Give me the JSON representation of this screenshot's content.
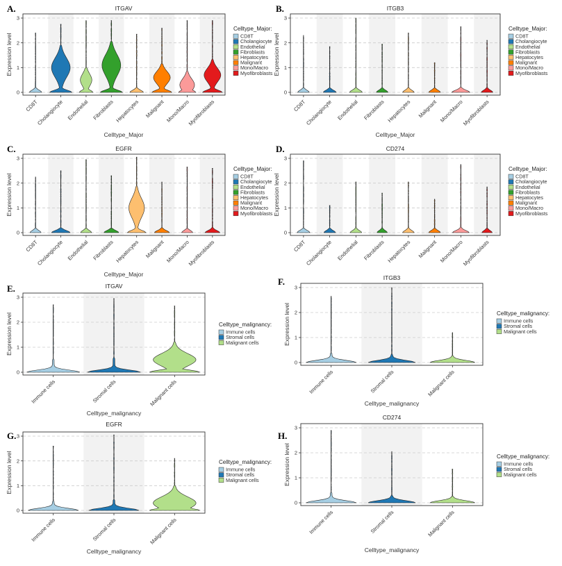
{
  "colors": {
    "major": [
      "#a6cee3",
      "#1f78b4",
      "#b2df8a",
      "#33a02c",
      "#fdbf6f",
      "#ff7f00",
      "#fb9a99",
      "#e31a1c"
    ],
    "malignancy": [
      "#a6cee3",
      "#1f78b4",
      "#b2df8a"
    ]
  },
  "chart_data": [
    {
      "type": "violin",
      "panel": "A.",
      "title": "ITGAV",
      "ylabel": "Expression level",
      "xlabel": "Celltype_Major",
      "ylim": [
        0,
        3
      ],
      "yticks": [
        0,
        1,
        2,
        3
      ],
      "legend_title": "Celltype_Major:",
      "legend_position": "right",
      "categories": [
        "CD8T",
        "Cholangiocyte",
        "Endothelial",
        "Fibroblasts",
        "Hepatocytes",
        "Malignant",
        "Mono/Macro",
        "Myofibroblasts"
      ],
      "series": [
        {
          "values": [
            0.1,
            1.0,
            0.5,
            1.1,
            0.1,
            0.6,
            0.3,
            0.7
          ],
          "max": [
            2.4,
            2.75,
            2.9,
            2.9,
            2.35,
            2.6,
            2.9,
            2.9
          ],
          "width": [
            0.5,
            0.9,
            0.55,
            0.9,
            0.55,
            0.8,
            0.7,
            0.8
          ]
        }
      ]
    },
    {
      "type": "violin",
      "panel": "B.",
      "title": "ITGB3",
      "ylabel": "Expression level",
      "xlabel": "Celltype_Major",
      "ylim": [
        0,
        3
      ],
      "yticks": [
        0,
        1,
        2,
        3
      ],
      "legend_title": "Celltype_Major:",
      "legend_position": "right",
      "categories": [
        "CD8T",
        "Cholangiocyte",
        "Endothelial",
        "Fibroblasts",
        "Hepatocytes",
        "Malignant",
        "Mono/Macro",
        "Myofibroblasts"
      ],
      "series": [
        {
          "values": [
            0.02,
            0.02,
            0.02,
            0.02,
            0.02,
            0.02,
            0.1,
            0.02
          ],
          "max": [
            2.3,
            1.85,
            3.0,
            1.95,
            2.4,
            1.2,
            2.65,
            2.1
          ],
          "width": [
            0.45,
            0.5,
            0.5,
            0.45,
            0.45,
            0.45,
            0.7,
            0.45
          ]
        }
      ]
    },
    {
      "type": "violin",
      "panel": "C.",
      "title": "EGFR",
      "ylabel": "Expression level",
      "xlabel": "Celltype_Major",
      "ylim": [
        0,
        3
      ],
      "yticks": [
        0,
        1,
        2,
        3
      ],
      "legend_title": "Celltype_Major:",
      "legend_position": "right",
      "categories": [
        "CD8T",
        "Cholangiocyte",
        "Endothelial",
        "Fibroblasts",
        "Hepatocytes",
        "Malignant",
        "Mono/Macro",
        "Myofibroblasts"
      ],
      "series": [
        {
          "values": [
            0.02,
            0.1,
            0.02,
            0.1,
            1.0,
            0.2,
            0.02,
            0.1
          ],
          "max": [
            2.25,
            2.5,
            2.95,
            2.3,
            3.05,
            2.05,
            2.65,
            2.6
          ],
          "width": [
            0.45,
            0.75,
            0.45,
            0.6,
            0.75,
            0.6,
            0.45,
            0.6
          ]
        }
      ]
    },
    {
      "type": "violin",
      "panel": "D.",
      "title": "CD274",
      "ylabel": "Expression level",
      "xlabel": "",
      "ylim": [
        0,
        3
      ],
      "yticks": [
        0,
        1,
        2,
        3
      ],
      "legend_title": "Celltype_Major:",
      "legend_position": "right",
      "categories": [
        "CD8T",
        "Cholangiocyte",
        "Endothelial",
        "Fibroblasts",
        "Hepatocytes",
        "Malignant",
        "Mono/Macro",
        "Myofibroblasts"
      ],
      "series": [
        {
          "values": [
            0.05,
            0.02,
            0.02,
            0.02,
            0.02,
            0.02,
            0.1,
            0.02
          ],
          "max": [
            2.9,
            1.1,
            2.05,
            1.6,
            2.05,
            1.35,
            2.75,
            1.85
          ],
          "width": [
            0.5,
            0.45,
            0.45,
            0.4,
            0.45,
            0.45,
            0.65,
            0.4
          ]
        }
      ]
    },
    {
      "type": "violin",
      "panel": "E.",
      "title": "ITGAV",
      "ylabel": "Expression level",
      "xlabel": "Celltype_malignancy",
      "ylim": [
        0,
        3
      ],
      "yticks": [
        0,
        1,
        2,
        3
      ],
      "legend_title": "Celltype_malignancy:",
      "legend_position": "right",
      "categories": [
        "Immune cells",
        "Stromal cells",
        "Malignant cells"
      ],
      "series": [
        {
          "values": [
            0.1,
            0.1,
            0.5
          ],
          "max": [
            2.7,
            2.95,
            2.65
          ],
          "width": [
            0.9,
            0.9,
            0.85
          ]
        }
      ]
    },
    {
      "type": "violin",
      "panel": "F.",
      "title": "ITGB3",
      "ylabel": "Expression level",
      "xlabel": "Celltype_malignancy",
      "ylim": [
        0,
        3
      ],
      "yticks": [
        0,
        1,
        2,
        3
      ],
      "legend_title": "Celltype_malignancy:",
      "legend_position": "right",
      "categories": [
        "Immune cells",
        "Stromal cells",
        "Malignant cells"
      ],
      "series": [
        {
          "values": [
            0.05,
            0.02,
            0.02
          ],
          "max": [
            2.65,
            3.0,
            1.2
          ],
          "width": [
            0.85,
            0.8,
            0.75
          ]
        }
      ]
    },
    {
      "type": "violin",
      "panel": "G.",
      "title": "EGFR",
      "ylabel": "Expression level",
      "xlabel": "Celltype_malignancy",
      "ylim": [
        0,
        3
      ],
      "yticks": [
        0,
        1,
        2,
        3
      ],
      "legend_title": "Celltype_malignancy:",
      "legend_position": "right",
      "categories": [
        "Immune cells",
        "Stromal cells",
        "Malignant cells"
      ],
      "series": [
        {
          "values": [
            0.02,
            0.05,
            0.3
          ],
          "max": [
            2.6,
            3.05,
            2.1
          ],
          "width": [
            0.85,
            0.85,
            0.85
          ]
        }
      ]
    },
    {
      "type": "violin",
      "panel": "H.",
      "title": "CD274",
      "ylabel": "Expression level",
      "xlabel": "Celltype_malignancy",
      "ylim": [
        0,
        3
      ],
      "yticks": [
        0,
        1,
        2,
        3
      ],
      "legend_title": "Celltype_malignancy:",
      "legend_position": "right",
      "categories": [
        "Immune cells",
        "Stromal cells",
        "Malignant cells"
      ],
      "series": [
        {
          "values": [
            0.05,
            0.02,
            0.02
          ],
          "max": [
            2.9,
            2.05,
            1.35
          ],
          "width": [
            0.85,
            0.8,
            0.75
          ]
        }
      ]
    }
  ]
}
